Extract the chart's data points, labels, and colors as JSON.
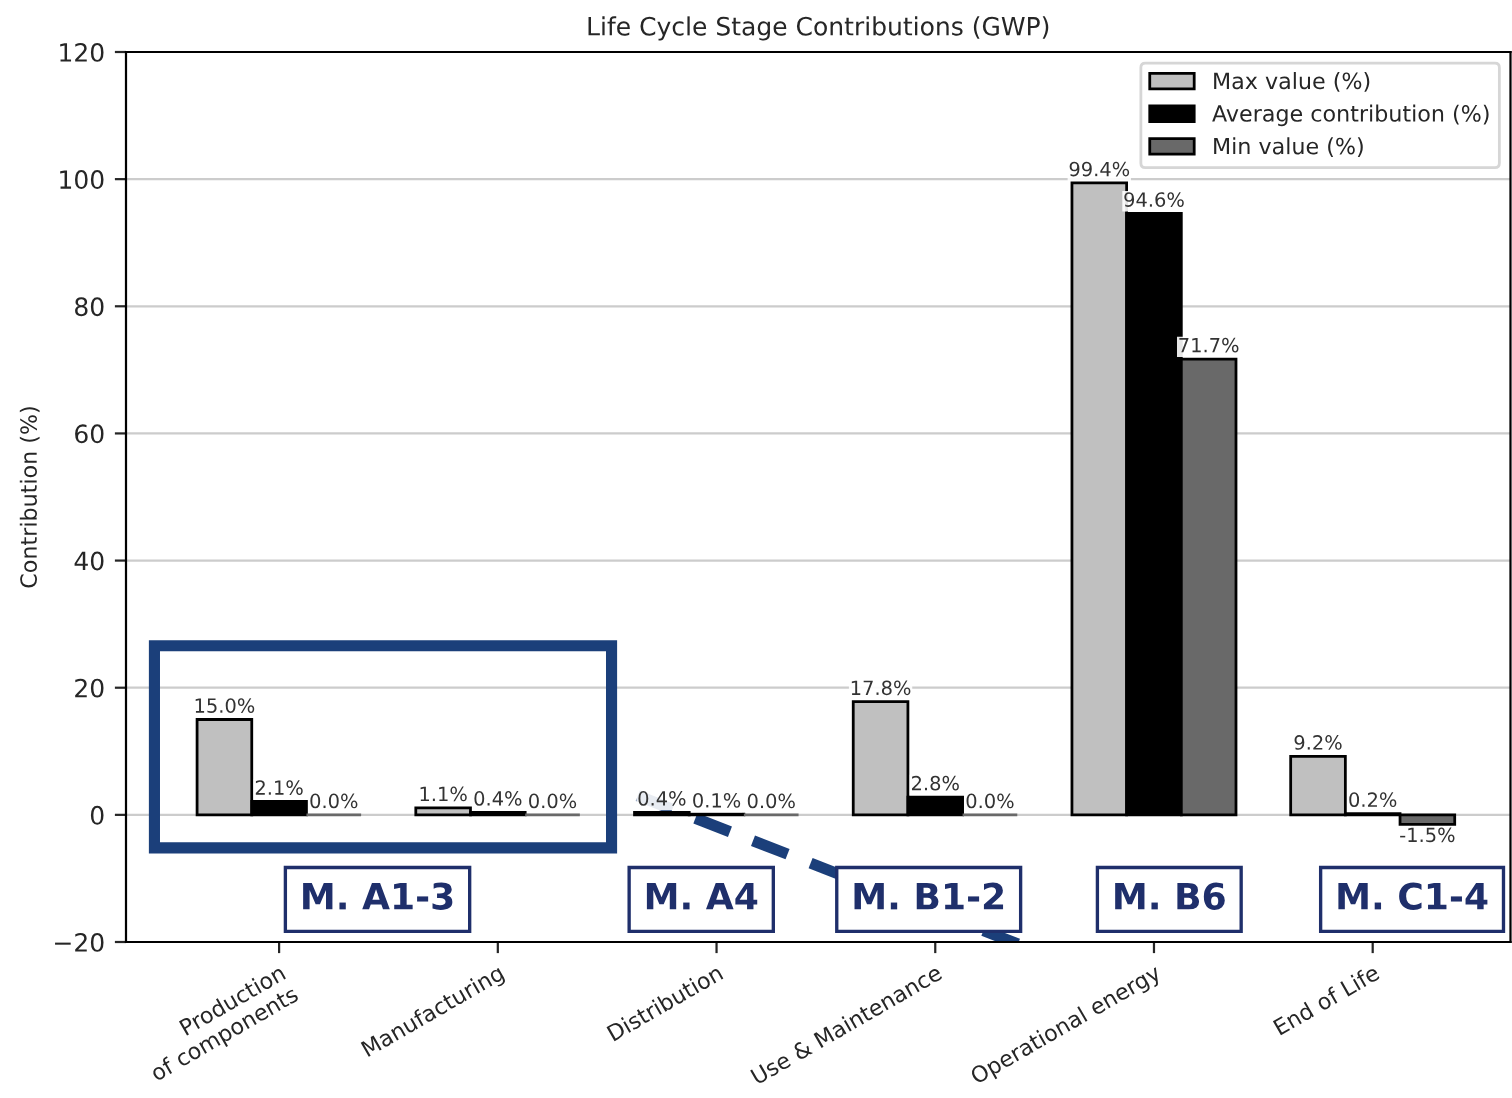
{
  "chart_data": {
    "type": "bar",
    "title": "Life Cycle Stage Contributions (GWP)",
    "ylabel": "Contribution (%)",
    "categories": [
      "Production\nof components",
      "Manufacturing",
      "Distribution",
      "Use & Maintenance",
      "Operational energy",
      "End of Life"
    ],
    "series": [
      {
        "name": "Max value (%)",
        "color": "#c0c0c0",
        "values": [
          15.0,
          1.1,
          0.4,
          17.8,
          99.4,
          9.2
        ],
        "value_labels": [
          "15.0%",
          "1.1%",
          "0.4%",
          "17.8%",
          "99.4%",
          "9.2%"
        ]
      },
      {
        "name": "Average contribution (%)",
        "color": "#000000",
        "values": [
          2.1,
          0.4,
          0.1,
          2.8,
          94.6,
          0.2
        ],
        "value_labels": [
          "2.1%",
          "0.4%",
          "0.1%",
          "2.8%",
          "94.6%",
          "0.2%"
        ]
      },
      {
        "name": "Min value (%)",
        "color": "#696969",
        "values": [
          0.0,
          0.0,
          0.0,
          0.0,
          71.7,
          -1.5
        ],
        "value_labels": [
          "0.0%",
          "0.0%",
          "0.0%",
          "0.0%",
          "71.7%",
          "-1.5%"
        ]
      }
    ],
    "ylim": [
      -20,
      120
    ],
    "yticks": [
      {
        "value": -20,
        "label": "−20"
      },
      0,
      20,
      40,
      60,
      80,
      100,
      120
    ],
    "grid": "y",
    "legend": "top right",
    "annotations": [
      "M. A1-3",
      "M. A4",
      "M. B1-2",
      "M. B6",
      "M. C1-4"
    ]
  }
}
